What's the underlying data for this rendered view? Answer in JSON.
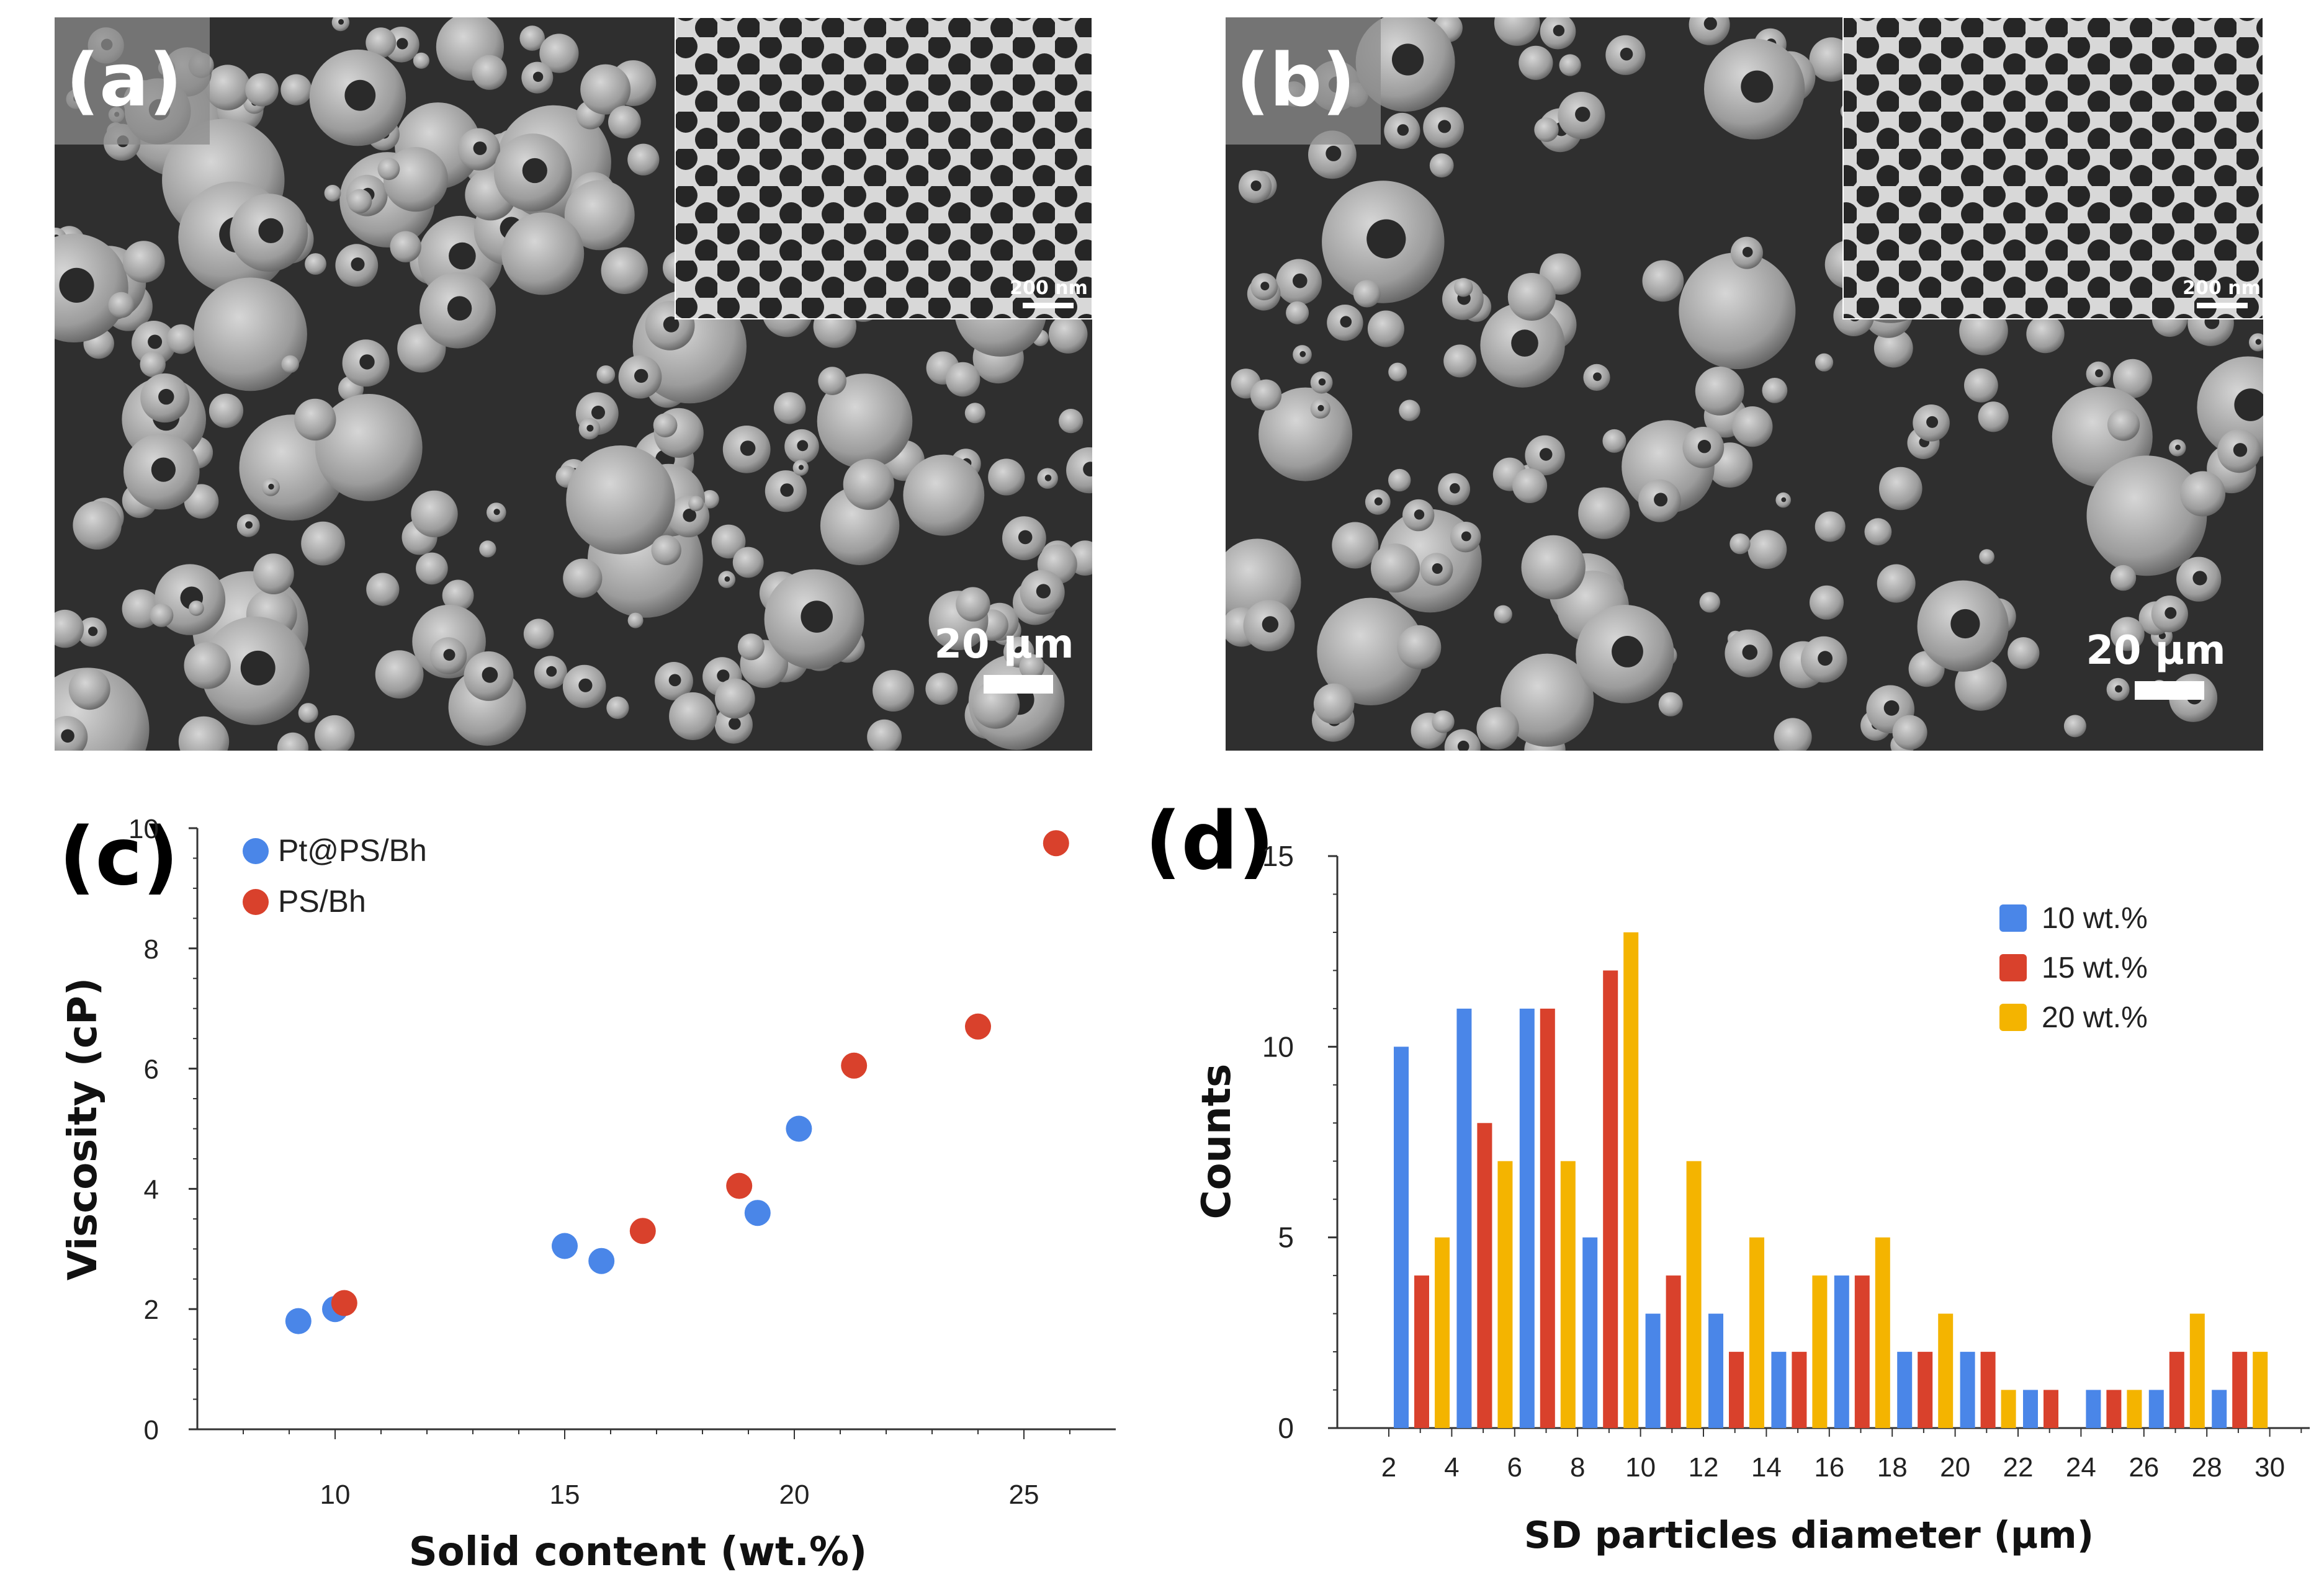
{
  "panels": {
    "a": {
      "letter": "(a)",
      "scale_bar": "20 µm",
      "inset_scale_bar": "200 nm"
    },
    "b": {
      "letter": "(b)",
      "scale_bar": "20 µm",
      "inset_scale_bar": "200 nm"
    },
    "c": {
      "letter": "(c)"
    },
    "d": {
      "letter": "(d)"
    }
  },
  "colors": {
    "blue": "#4a86e8",
    "red": "#d9412c",
    "yellow": "#f4b400",
    "sem_background": "#2f2f2f",
    "particle": "#9a9a9a"
  },
  "chart_data": [
    {
      "panel": "c",
      "type": "scatter",
      "xlabel": "Solid content (wt.%)",
      "ylabel": "Viscosity (cP)",
      "xlim": [
        7,
        27
      ],
      "ylim": [
        0,
        10
      ],
      "x_ticks": [
        10,
        15,
        20,
        25
      ],
      "y_ticks": [
        0,
        2,
        4,
        6,
        8,
        10
      ],
      "legend_position": "top-left",
      "series": [
        {
          "name": "Pt@PS/Bh",
          "color": "#4a86e8",
          "points": [
            [
              9.2,
              1.8
            ],
            [
              10.0,
              2.0
            ],
            [
              15.0,
              3.05
            ],
            [
              15.8,
              2.8
            ],
            [
              19.2,
              3.6
            ],
            [
              20.1,
              5.0
            ]
          ]
        },
        {
          "name": "PS/Bh",
          "color": "#d9412c",
          "points": [
            [
              10.2,
              2.1
            ],
            [
              16.7,
              3.3
            ],
            [
              18.8,
              4.05
            ],
            [
              21.3,
              6.05
            ],
            [
              24.0,
              6.7
            ],
            [
              25.7,
              9.75
            ]
          ]
        }
      ]
    },
    {
      "panel": "d",
      "type": "bar",
      "xlabel": "SD particles diameter (µm)",
      "ylabel": "Counts",
      "ylim": [
        0,
        15
      ],
      "y_ticks": [
        0,
        5,
        10,
        15
      ],
      "x_tick_labels": [
        "2",
        "4",
        "6",
        "8",
        "10",
        "12",
        "14",
        "16",
        "18",
        "20",
        "22",
        "24",
        "26",
        "28",
        "30"
      ],
      "categories": [
        "2-4",
        "4-6",
        "6-8",
        "8-10",
        "10-12",
        "12-14",
        "14-16",
        "16-18",
        "18-20",
        "20-22",
        "22-24",
        "24-26",
        "26-28",
        "28-30"
      ],
      "legend_position": "top-right",
      "series": [
        {
          "name": "10 wt.%",
          "color": "#4a86e8",
          "values": [
            10,
            11,
            11,
            5,
            3,
            3,
            2,
            4,
            2,
            2,
            1,
            1,
            1,
            1
          ]
        },
        {
          "name": "15 wt.%",
          "color": "#d9412c",
          "values": [
            4,
            8,
            11,
            12,
            4,
            2,
            2,
            4,
            2,
            2,
            1,
            1,
            2,
            2
          ]
        },
        {
          "name": "20 wt.%",
          "color": "#f4b400",
          "values": [
            5,
            7,
            7,
            13,
            7,
            5,
            4,
            5,
            3,
            1,
            0,
            1,
            3,
            2
          ]
        }
      ]
    }
  ]
}
